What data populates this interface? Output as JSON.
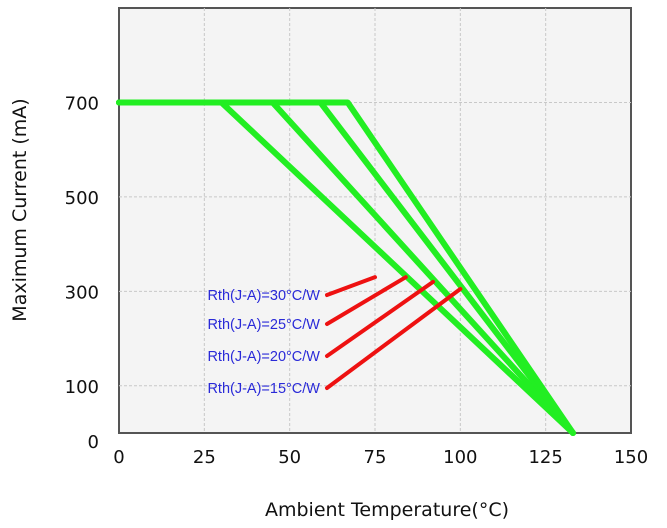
{
  "chart_data": {
    "type": "line",
    "title": "",
    "xlabel": "Ambient Temperature(°C)",
    "ylabel": "Maximum Current (mA)",
    "xlim": [
      0,
      150
    ],
    "ylim": [
      0,
      900
    ],
    "x_ticks": [
      0,
      25,
      50,
      75,
      100,
      125,
      150
    ],
    "y_ticks": [
      0,
      100,
      300,
      500,
      700
    ],
    "grid": true,
    "legend": "none",
    "series": [
      {
        "name": "Rth(J-A)=30°C/W",
        "points": [
          [
            0,
            700
          ],
          [
            30,
            700
          ],
          [
            133,
            0
          ]
        ]
      },
      {
        "name": "Rth(J-A)=25°C/W",
        "points": [
          [
            0,
            700
          ],
          [
            45,
            700
          ],
          [
            133,
            0
          ]
        ]
      },
      {
        "name": "Rth(J-A)=20°C/W",
        "points": [
          [
            0,
            700
          ],
          [
            59,
            700
          ],
          [
            133,
            0
          ]
        ]
      },
      {
        "name": "Rth(J-A)=15°C/W",
        "points": [
          [
            0,
            700
          ],
          [
            67,
            700
          ],
          [
            133,
            0
          ]
        ]
      }
    ],
    "annotations": [
      {
        "text": "Rth(J-A)=30°C/W",
        "pointer_to": [
          75,
          330
        ]
      },
      {
        "text": "Rth(J-A)=25°C/W",
        "pointer_to": [
          84,
          330
        ]
      },
      {
        "text": "Rth(J-A)=20°C/W",
        "pointer_to": [
          92,
          320
        ]
      },
      {
        "text": "Rth(J-A)=15°C/W",
        "pointer_to": [
          100,
          305
        ]
      }
    ],
    "colors": {
      "series": "#22ee22",
      "pointer": "#ee1111",
      "annotation_text": "#2a2ad8",
      "plot_background": "#f4f4f4",
      "grid": "#c8c8c8"
    }
  }
}
